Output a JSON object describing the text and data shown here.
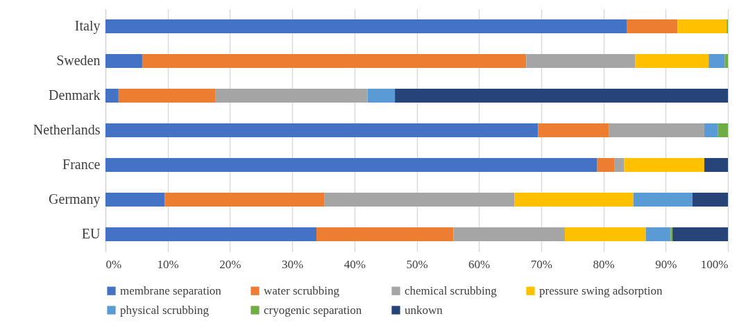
{
  "chart_data": {
    "type": "bar",
    "orientation": "horizontal",
    "stacked": true,
    "categories": [
      "Italy",
      "Sweden",
      "Denmark",
      "Netherlands",
      "France",
      "Germany",
      "EU"
    ],
    "series": [
      {
        "name": "membrane separation",
        "color": "#4472c4",
        "values": [
          83.8,
          5.9,
          2.1,
          69.5,
          79.0,
          9.5,
          33.9
        ]
      },
      {
        "name": "water scrubbing",
        "color": "#ed7d31",
        "values": [
          8.1,
          61.7,
          15.6,
          11.4,
          2.8,
          25.7,
          22.0
        ]
      },
      {
        "name": "chemical scrubbing",
        "color": "#a5a5a5",
        "values": [
          null,
          17.5,
          24.4,
          15.3,
          1.5,
          30.5,
          17.9
        ]
      },
      {
        "name": "pressure swing adsorption",
        "color": "#ffc000",
        "values": [
          7.9,
          11.8,
          null,
          null,
          12.9,
          19.1,
          13.0
        ]
      },
      {
        "name": "physical scrubbing",
        "color": "#5b9bd5",
        "values": [
          null,
          2.6,
          4.4,
          2.2,
          null,
          9.5,
          4.0
        ]
      },
      {
        "name": "cryogenic separation",
        "color": "#70ad47",
        "values": [
          0.2,
          0.5,
          null,
          1.6,
          null,
          null,
          0.3
        ]
      },
      {
        "name": "unkown",
        "color": "#264478",
        "values": [
          null,
          null,
          53.5,
          null,
          3.8,
          5.7,
          8.9
        ]
      }
    ],
    "xlim": [
      0,
      100
    ],
    "xticks": [
      {
        "value": 0,
        "label": "0%"
      },
      {
        "value": 10,
        "label": "10%"
      },
      {
        "value": 20,
        "label": "20%"
      },
      {
        "value": 30,
        "label": "30%"
      },
      {
        "value": 40,
        "label": "40%"
      },
      {
        "value": 50,
        "label": "50%"
      },
      {
        "value": 60,
        "label": "60%"
      },
      {
        "value": 70,
        "label": "70%"
      },
      {
        "value": 80,
        "label": "80%"
      },
      {
        "value": 90,
        "label": "90%"
      },
      {
        "value": 100,
        "label": "100%"
      }
    ],
    "grid": "x",
    "legend": "bottom"
  }
}
